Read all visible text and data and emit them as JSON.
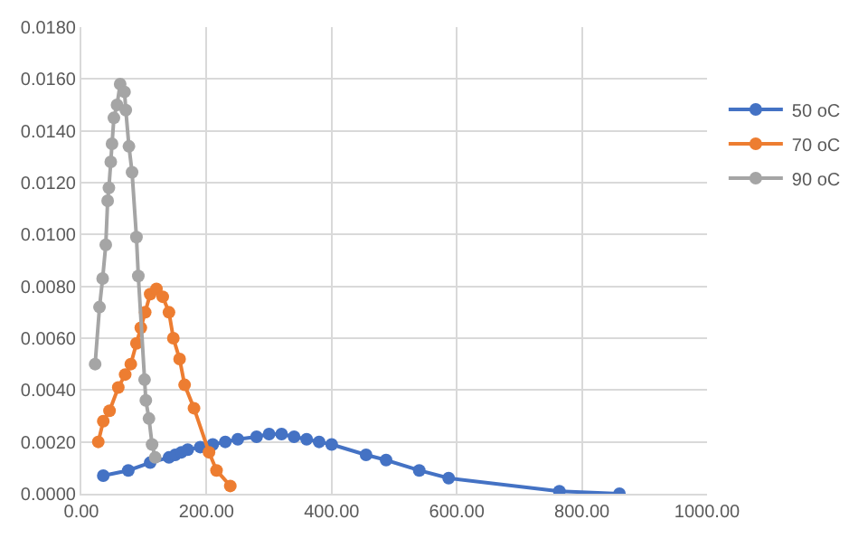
{
  "chart_data": {
    "type": "line",
    "series": [
      {
        "name": "50 oC",
        "color": "#4472c4",
        "x": [
          35,
          75,
          110,
          140,
          150,
          160,
          170,
          190,
          210,
          230,
          250,
          280,
          300,
          320,
          340,
          360,
          380,
          400,
          455,
          487,
          540,
          587,
          764,
          860
        ],
        "values": [
          0.0007,
          0.0009,
          0.0012,
          0.0014,
          0.0015,
          0.0016,
          0.0017,
          0.0018,
          0.0019,
          0.002,
          0.0021,
          0.0022,
          0.0023,
          0.0023,
          0.0022,
          0.0021,
          0.002,
          0.0019,
          0.0015,
          0.0013,
          0.0009,
          0.0006,
          0.0001,
          0.0
        ]
      },
      {
        "name": "70 oC",
        "color": "#ed7d31",
        "x": [
          27,
          35,
          45,
          59,
          70,
          79,
          88,
          95,
          102,
          110,
          120,
          130,
          140,
          147,
          157,
          165,
          180,
          204,
          216,
          238
        ],
        "values": [
          0.002,
          0.0028,
          0.0032,
          0.0041,
          0.0046,
          0.005,
          0.0058,
          0.0064,
          0.007,
          0.0077,
          0.0079,
          0.0076,
          0.007,
          0.006,
          0.0052,
          0.0042,
          0.0033,
          0.0016,
          0.0009,
          0.0003
        ]
      },
      {
        "name": "90 oC",
        "color": "#a5a5a5",
        "x": [
          22,
          29,
          34,
          39,
          42,
          44,
          47,
          49,
          52,
          57,
          62,
          69,
          71,
          76,
          81,
          88,
          91,
          101,
          103,
          108,
          113,
          118
        ],
        "values": [
          0.005,
          0.0072,
          0.0083,
          0.0096,
          0.0113,
          0.0118,
          0.0128,
          0.0135,
          0.0145,
          0.015,
          0.0158,
          0.0155,
          0.0148,
          0.0134,
          0.0124,
          0.0099,
          0.0084,
          0.0044,
          0.0036,
          0.0029,
          0.0019,
          0.0014
        ]
      }
    ],
    "xlim": [
      0,
      1000
    ],
    "xticks": [
      {
        "value": 0,
        "label": "0.00"
      },
      {
        "value": 200,
        "label": "200.00"
      },
      {
        "value": 400,
        "label": "400.00"
      },
      {
        "value": 600,
        "label": "600.00"
      },
      {
        "value": 800,
        "label": "800.00"
      },
      {
        "value": 1000,
        "label": "1000.00"
      }
    ],
    "ylim": [
      0,
      0.018
    ],
    "yticks": [
      {
        "value": 0,
        "label": "0.0000"
      },
      {
        "value": 0.002,
        "label": "0.0020"
      },
      {
        "value": 0.004,
        "label": "0.0040"
      },
      {
        "value": 0.006,
        "label": "0.0060"
      },
      {
        "value": 0.008,
        "label": "0.0080"
      },
      {
        "value": 0.01,
        "label": "0.0100"
      },
      {
        "value": 0.012,
        "label": "0.0120"
      },
      {
        "value": 0.014,
        "label": "0.0140"
      },
      {
        "value": 0.016,
        "label": "0.0160"
      },
      {
        "value": 0.018,
        "label": "0.0180"
      }
    ],
    "grid": true,
    "legend": "right",
    "marker": "circle",
    "line_style": "solid"
  }
}
